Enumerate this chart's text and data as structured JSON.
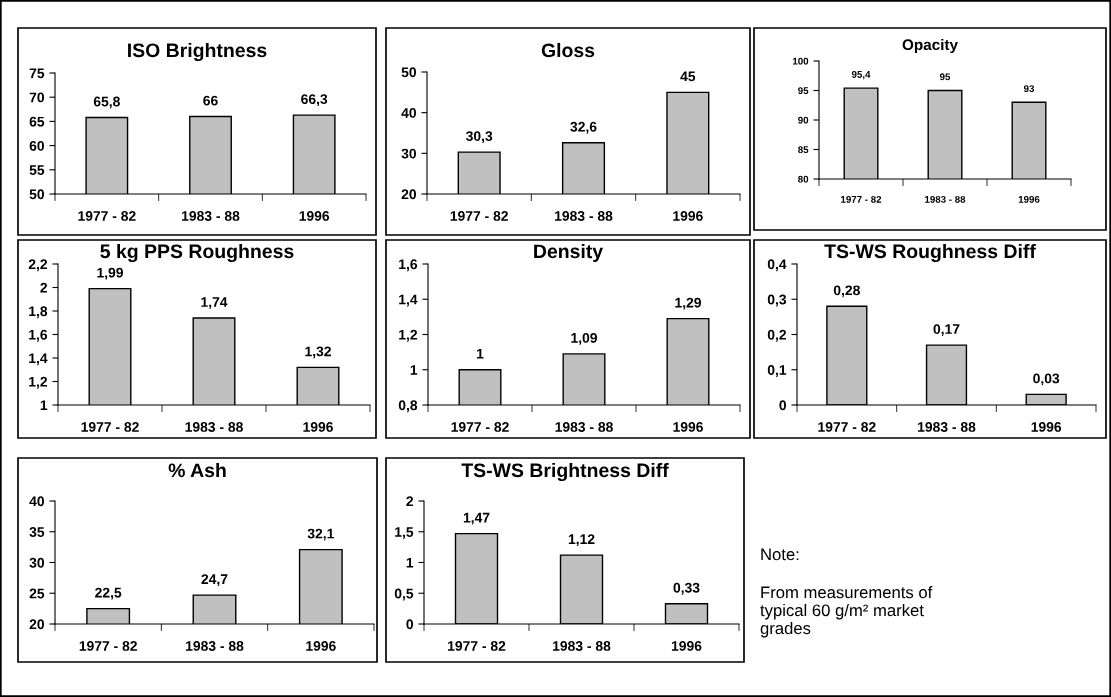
{
  "chart_data": [
    {
      "type": "bar",
      "title": "ISO Brightness",
      "categories": [
        "1977 - 82",
        "1983 - 88",
        "1996"
      ],
      "values": [
        65.8,
        66,
        66.3
      ],
      "value_labels": [
        "65,8",
        "66",
        "66,3"
      ],
      "color": "#c0c0c0",
      "ylim": [
        50,
        75
      ],
      "yticks": [
        50,
        55,
        60,
        65,
        70,
        75
      ]
    },
    {
      "type": "bar",
      "title": "Gloss",
      "categories": [
        "1977 - 82",
        "1983 - 88",
        "1996"
      ],
      "values": [
        30.3,
        32.6,
        45
      ],
      "value_labels": [
        "30,3",
        "32,6",
        "45"
      ],
      "color": "#c0c0c0",
      "ylim": [
        20,
        50
      ],
      "yticks": [
        20,
        30,
        40,
        50
      ]
    },
    {
      "type": "bar",
      "title": "Opacity",
      "categories": [
        "1977 - 82",
        "1983 - 88",
        "1996"
      ],
      "values": [
        95.4,
        95,
        93
      ],
      "value_labels": [
        "95,4",
        "95",
        "93"
      ],
      "color": "#c0c0c0",
      "ylim": [
        80,
        100
      ],
      "yticks": [
        80,
        85,
        90,
        95,
        100
      ]
    },
    {
      "type": "bar",
      "title": "5 kg PPS Roughness",
      "categories": [
        "1977 - 82",
        "1983 - 88",
        "1996"
      ],
      "values": [
        1.99,
        1.74,
        1.32
      ],
      "value_labels": [
        "1,99",
        "1,74",
        "1,32"
      ],
      "color": "#c0c0c0",
      "ylim": [
        1,
        2.2
      ],
      "yticks": [
        1,
        {
          "value": 1.2,
          "label": "1,2"
        },
        {
          "value": 1.4,
          "label": "1,4"
        },
        {
          "value": 1.6,
          "label": "1,6"
        },
        {
          "value": 1.8,
          "label": "1,8"
        },
        2,
        {
          "value": 2.2,
          "label": "2,2"
        }
      ]
    },
    {
      "type": "bar",
      "title": "Density",
      "categories": [
        "1977 - 82",
        "1983 - 88",
        "1996"
      ],
      "values": [
        1,
        1.09,
        1.29
      ],
      "value_labels": [
        "1",
        "1,09",
        "1,29"
      ],
      "color": "#c0c0c0",
      "ylim": [
        0.8,
        1.6
      ],
      "yticks": [
        {
          "value": 0.8,
          "label": "0,8"
        },
        1,
        {
          "value": 1.2,
          "label": "1,2"
        },
        {
          "value": 1.4,
          "label": "1,4"
        },
        {
          "value": 1.6,
          "label": "1,6"
        }
      ]
    },
    {
      "type": "bar",
      "title": "TS-WS Roughness Diff",
      "categories": [
        "1977 - 82",
        "1983 - 88",
        "1996"
      ],
      "values": [
        0.28,
        0.17,
        0.03
      ],
      "value_labels": [
        "0,28",
        "0,17",
        "0,03"
      ],
      "color": "#c0c0c0",
      "ylim": [
        0,
        0.4
      ],
      "yticks": [
        0,
        {
          "value": 0.1,
          "label": "0,1"
        },
        {
          "value": 0.2,
          "label": "0,2"
        },
        {
          "value": 0.3,
          "label": "0,3"
        },
        {
          "value": 0.4,
          "label": "0,4"
        }
      ]
    },
    {
      "type": "bar",
      "title": "% Ash",
      "categories": [
        "1977 - 82",
        "1983 - 88",
        "1996"
      ],
      "values": [
        22.5,
        24.7,
        32.1
      ],
      "value_labels": [
        "22,5",
        "24,7",
        "32,1"
      ],
      "color": "#c0c0c0",
      "ylim": [
        20,
        40
      ],
      "yticks": [
        20,
        25,
        30,
        35,
        40
      ]
    },
    {
      "type": "bar",
      "title": "TS-WS Brightness Diff",
      "categories": [
        "1977 - 82",
        "1983 - 88",
        "1996"
      ],
      "values": [
        1.47,
        1.12,
        0.33
      ],
      "value_labels": [
        "1,47",
        "1,12",
        "0,33"
      ],
      "color": "#c0c0c0",
      "ylim": [
        0,
        2
      ],
      "yticks": [
        0,
        {
          "value": 0.5,
          "label": "0,5"
        },
        1,
        {
          "value": 1.5,
          "label": "1,5"
        },
        2
      ]
    },
    {
      "type": "other",
      "annotations": [
        "Note:",
        "From measurements of\ntypical 60 g/m² market\ngrades"
      ]
    }
  ]
}
